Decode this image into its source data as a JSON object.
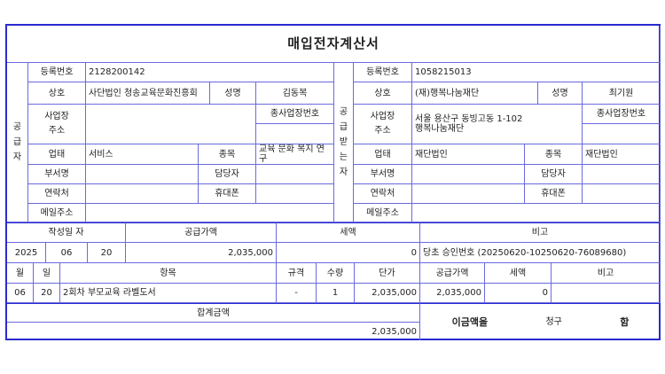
{
  "title": "매입전자계산서",
  "labels": {
    "reg": "등록번호",
    "name": "상호",
    "rep": "성명",
    "addr1": "사업장",
    "addr2": "주소",
    "subno": "종사업장번호",
    "biz": "업태",
    "item": "종목",
    "dept": "부서명",
    "person": "담당자",
    "tel": "연락처",
    "mobile": "휴대폰",
    "email": "메일주소"
  },
  "supplier": {
    "side": [
      "공",
      "급",
      "자"
    ],
    "reg": "2128200142",
    "name": "사단법인 청송교육문화진흥회",
    "rep": "김동복",
    "addr": "",
    "subno": "",
    "biz": "서비스",
    "item": "교육 문화 복지 연구"
  },
  "receiver": {
    "side": [
      "공",
      "급",
      "받",
      "는",
      "자"
    ],
    "reg": "1058215013",
    "name": "(재)행복나눔재단",
    "rep": "최기원",
    "addr": "서울 용산구 동빙고동 1-102 행복나눔재단",
    "subno": "",
    "biz": "재단법인",
    "item": "재단법인"
  },
  "summary": {
    "h_date": "작성일 자",
    "h_supply": "공급가액",
    "h_tax": "세액",
    "h_note": "비고",
    "year": "2025",
    "month": "06",
    "day": "20",
    "supply": "2,035,000",
    "tax": "0",
    "note": "당초 승인번호 (20250620-10250620-76089680)"
  },
  "items_header": {
    "month": "월",
    "day": "일",
    "name": "항목",
    "spec": "규격",
    "qty": "수량",
    "price": "단가",
    "supply": "공급가액",
    "tax": "세액",
    "note": "비고"
  },
  "items": [
    {
      "month": "06",
      "day": "20",
      "name": "2회차 부모교육 라벨도서",
      "spec": "-",
      "qty": "1",
      "price": "2,035,000",
      "supply": "2,035,000",
      "tax": "0",
      "note": ""
    }
  ],
  "total": {
    "label": "합계금액",
    "value": "2,035,000",
    "claim1": "이금액을",
    "claim2": "청구",
    "claim3": "함"
  }
}
